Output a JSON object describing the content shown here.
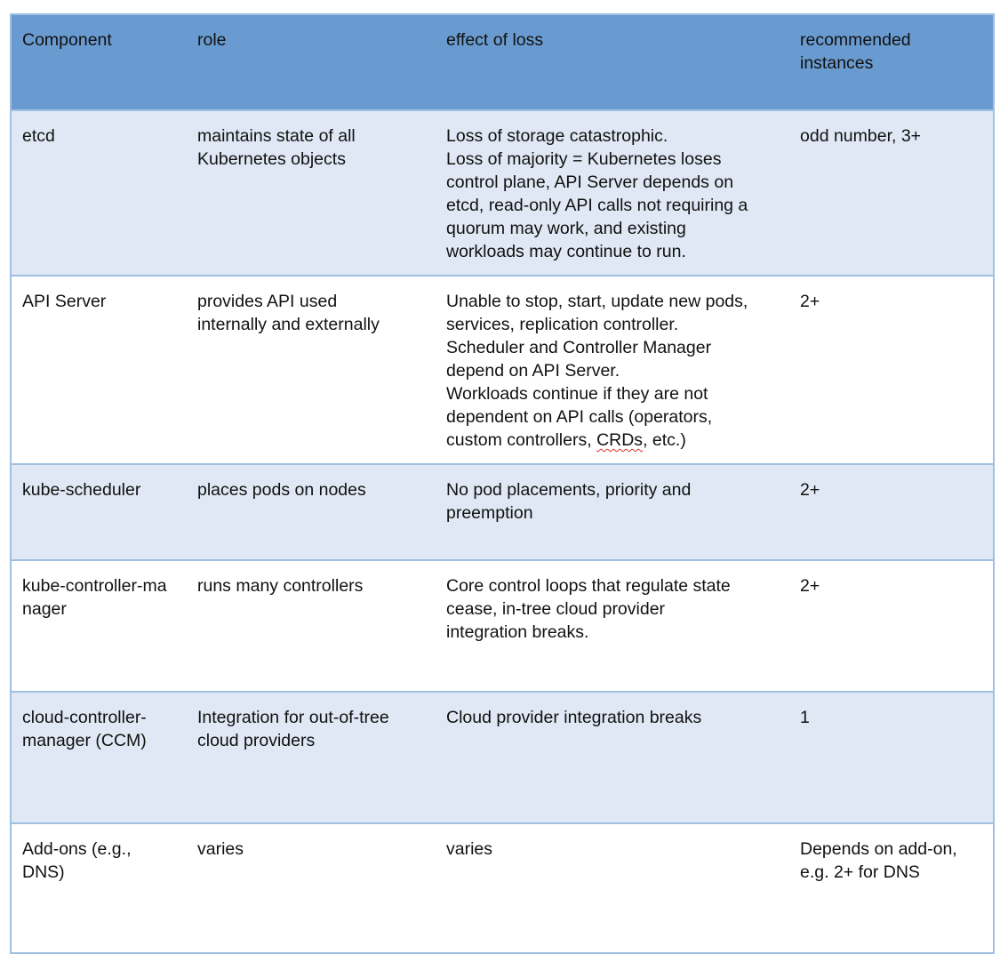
{
  "headers": [
    "Component",
    "role",
    "effect of loss",
    "recommended\ninstances"
  ],
  "rows": [
    {
      "component": "etcd",
      "role": "maintains state of all\nKubernetes objects",
      "effect": "Loss of storage catastrophic.\nLoss of majority = Kubernetes loses\ncontrol plane, API Server depends on\netcd, read-only API calls not requiring a\nquorum may work, and existing\nworkloads may continue to run.",
      "instances": "odd number, 3+"
    },
    {
      "component": "API Server",
      "role": "provides API used\ninternally and externally",
      "effect": "Unable to stop, start, update new pods,\nservices, replication controller.\nScheduler and Controller Manager\ndepend on API Server.\nWorkloads continue if they are not\ndependent on API calls (operators,\ncustom controllers, ",
      "effect_misspelled": "CRDs",
      "effect_tail": ", etc.)",
      "instances": "2+"
    },
    {
      "component": "kube-scheduler",
      "role": "places pods on nodes",
      "effect": "No pod placements, priority and\npreemption",
      "instances": "2+"
    },
    {
      "component": "kube-controller-manager",
      "role": "runs many controllers",
      "effect": "Core control loops that regulate state\ncease, in-tree cloud provider\nintegration breaks.",
      "instances": "2+"
    },
    {
      "component": "cloud-controller-\nmanager (CCM)",
      "role": "Integration for out-of-tree\ncloud providers",
      "effect": "Cloud provider integration breaks",
      "instances": "1"
    },
    {
      "component": "Add-ons (e.g.,\nDNS)",
      "role": "varies",
      "effect": "varies",
      "instances": "Depends on add-on,\ne.g. 2+ for DNS"
    }
  ],
  "colors": {
    "header_bg": "#6a9bd0",
    "band_bg": "#dfe8f4",
    "border": "#9fc0e3",
    "spellcheck": "#d93025"
  }
}
